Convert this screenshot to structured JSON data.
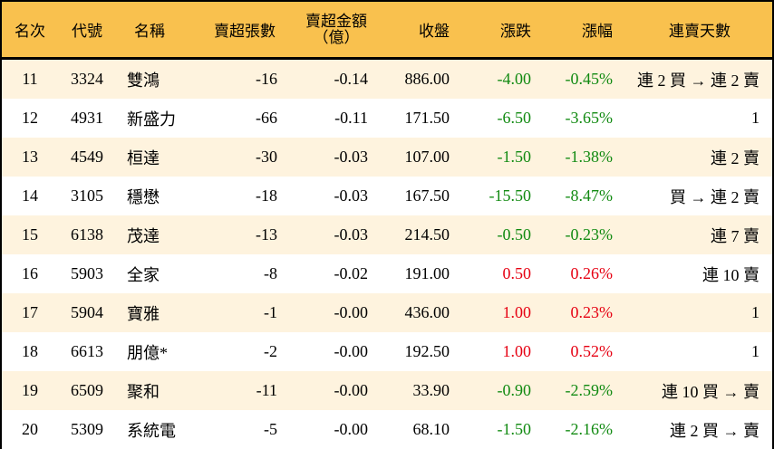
{
  "table": {
    "headers": {
      "rank": "名次",
      "code": "代號",
      "name": "名稱",
      "net_sell_lots": "賣超張數",
      "net_sell_amount": "賣超金額",
      "net_sell_amount_unit": "（億）",
      "close": "收盤",
      "change": "漲跌",
      "change_pct": "漲幅",
      "streak": "連賣天數"
    },
    "colors": {
      "header_bg": "#F9C14E",
      "row_alt_bg": "#FEF3DE",
      "up": "#E60012",
      "down": "#118A11"
    },
    "rows": [
      {
        "rank": "11",
        "code": "3324",
        "name": "雙鴻",
        "lots": "-16",
        "amount": "-0.14",
        "close": "886.00",
        "change": "-4.00",
        "pct": "-0.45%",
        "dir": "down",
        "streak": "連 2 買 → 連 2 賣"
      },
      {
        "rank": "12",
        "code": "4931",
        "name": "新盛力",
        "lots": "-66",
        "amount": "-0.11",
        "close": "171.50",
        "change": "-6.50",
        "pct": "-3.65%",
        "dir": "down",
        "streak": "1"
      },
      {
        "rank": "13",
        "code": "4549",
        "name": "桓達",
        "lots": "-30",
        "amount": "-0.03",
        "close": "107.00",
        "change": "-1.50",
        "pct": "-1.38%",
        "dir": "down",
        "streak": "連 2 賣"
      },
      {
        "rank": "14",
        "code": "3105",
        "name": "穩懋",
        "lots": "-18",
        "amount": "-0.03",
        "close": "167.50",
        "change": "-15.50",
        "pct": "-8.47%",
        "dir": "down",
        "streak": "買 → 連 2 賣"
      },
      {
        "rank": "15",
        "code": "6138",
        "name": "茂達",
        "lots": "-13",
        "amount": "-0.03",
        "close": "214.50",
        "change": "-0.50",
        "pct": "-0.23%",
        "dir": "down",
        "streak": "連 7 賣"
      },
      {
        "rank": "16",
        "code": "5903",
        "name": "全家",
        "lots": "-8",
        "amount": "-0.02",
        "close": "191.00",
        "change": "0.50",
        "pct": "0.26%",
        "dir": "up",
        "streak": "連 10 賣"
      },
      {
        "rank": "17",
        "code": "5904",
        "name": "寶雅",
        "lots": "-1",
        "amount": "-0.00",
        "close": "436.00",
        "change": "1.00",
        "pct": "0.23%",
        "dir": "up",
        "streak": "1"
      },
      {
        "rank": "18",
        "code": "6613",
        "name": "朋億*",
        "lots": "-2",
        "amount": "-0.00",
        "close": "192.50",
        "change": "1.00",
        "pct": "0.52%",
        "dir": "up",
        "streak": "1"
      },
      {
        "rank": "19",
        "code": "6509",
        "name": "聚和",
        "lots": "-11",
        "amount": "-0.00",
        "close": "33.90",
        "change": "-0.90",
        "pct": "-2.59%",
        "dir": "down",
        "streak": "連 10 買 → 賣"
      },
      {
        "rank": "20",
        "code": "5309",
        "name": "系統電",
        "lots": "-5",
        "amount": "-0.00",
        "close": "68.10",
        "change": "-1.50",
        "pct": "-2.16%",
        "dir": "down",
        "streak": "連 2 買 → 賣"
      }
    ]
  }
}
